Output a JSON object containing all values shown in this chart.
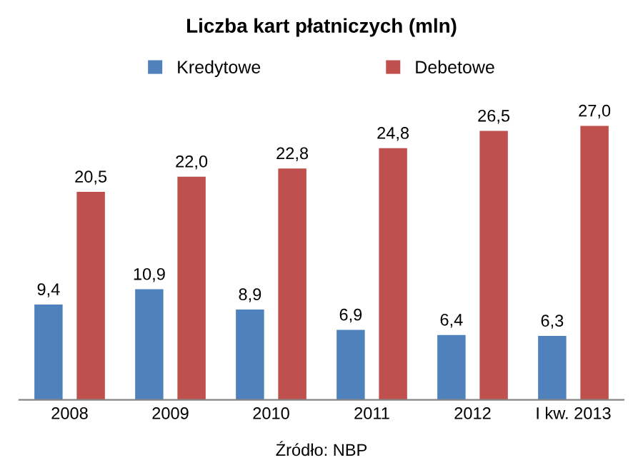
{
  "chart_data": {
    "type": "bar",
    "title": "Liczba kart płatniczych (mln)",
    "categories": [
      "2008",
      "2009",
      "2010",
      "2011",
      "2012",
      "I kw. 2013"
    ],
    "series": [
      {
        "name": "Kredytowe",
        "color": "#4f81bd",
        "values": [
          9.4,
          10.9,
          8.9,
          6.9,
          6.4,
          6.3
        ],
        "value_labels": [
          "9,4",
          "10,9",
          "8,9",
          "6,9",
          "6,4",
          "6,3"
        ]
      },
      {
        "name": "Debetowe",
        "color": "#c0504d",
        "values": [
          20.5,
          22.0,
          22.8,
          24.8,
          26.5,
          27.0
        ],
        "value_labels": [
          "20,5",
          "22,0",
          "22,8",
          "24,8",
          "26,5",
          "27,0"
        ]
      }
    ],
    "legend": "top",
    "grid": false,
    "annotations": [
      "Źródło: NBP"
    ]
  }
}
